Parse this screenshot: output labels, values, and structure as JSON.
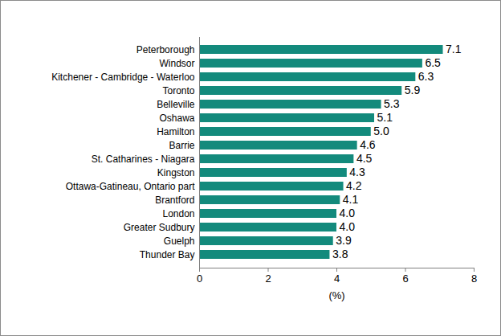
{
  "chart_data": {
    "type": "bar",
    "orientation": "horizontal",
    "categories": [
      "Peterborough",
      "Windsor",
      "Kitchener - Cambridge - Waterloo",
      "Toronto",
      "Belleville",
      "Oshawa",
      "Hamilton",
      "Barrie",
      "St. Catharines - Niagara",
      "Kingston",
      "Ottawa-Gatineau, Ontario part",
      "Brantford",
      "London",
      "Greater Sudbury",
      "Guelph",
      "Thunder Bay"
    ],
    "values": [
      7.1,
      6.5,
      6.3,
      5.9,
      5.3,
      5.1,
      5.0,
      4.6,
      4.5,
      4.3,
      4.2,
      4.1,
      4.0,
      4.0,
      3.9,
      3.8
    ],
    "value_labels": [
      "7.1",
      "6.5",
      "6.3",
      "5.9",
      "5.3",
      "5.1",
      "5.0",
      "4.6",
      "4.5",
      "4.3",
      "4.2",
      "4.1",
      "4.0",
      "4.0",
      "3.9",
      "3.8"
    ],
    "data_labels": true,
    "color": "#138a7c",
    "x_label": "(%)",
    "xlim": [
      0,
      8
    ],
    "xticks": [
      0,
      2,
      4,
      6,
      8
    ],
    "grid": false
  }
}
